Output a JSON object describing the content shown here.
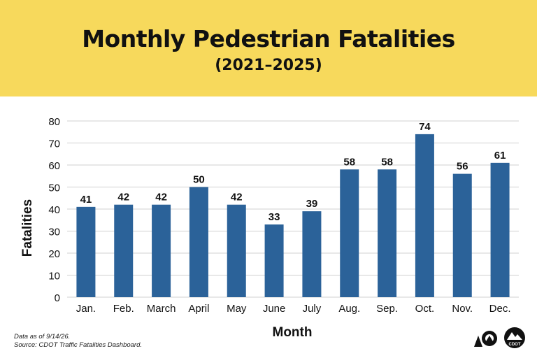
{
  "header": {
    "title": "Monthly Pedestrian Fatalities",
    "subtitle": "(2021–2025)"
  },
  "chart_data": {
    "type": "bar",
    "categories": [
      "Jan.",
      "Feb.",
      "March",
      "April",
      "May",
      "June",
      "July",
      "Aug.",
      "Sep.",
      "Oct.",
      "Nov.",
      "Dec."
    ],
    "values": [
      41,
      42,
      42,
      50,
      42,
      33,
      39,
      58,
      58,
      74,
      56,
      61
    ],
    "xlabel": "Month",
    "ylabel": "Fatalities",
    "ylim": [
      0,
      80
    ],
    "yticks": [
      0,
      10,
      20,
      30,
      40,
      50,
      60,
      70,
      80
    ],
    "grid": true,
    "data_labels": true,
    "bar_color": "#2b6299",
    "grid_color": "#d0d0d0"
  },
  "footnote": {
    "line1": "Data as of 9/14/26.",
    "line2": "Source: CDOT Traffic Fatalities Dashboard."
  },
  "logo": {
    "text": "CDOT",
    "icon": "colorado-cdot-logo"
  },
  "colors": {
    "banner": "#f7d95c"
  }
}
